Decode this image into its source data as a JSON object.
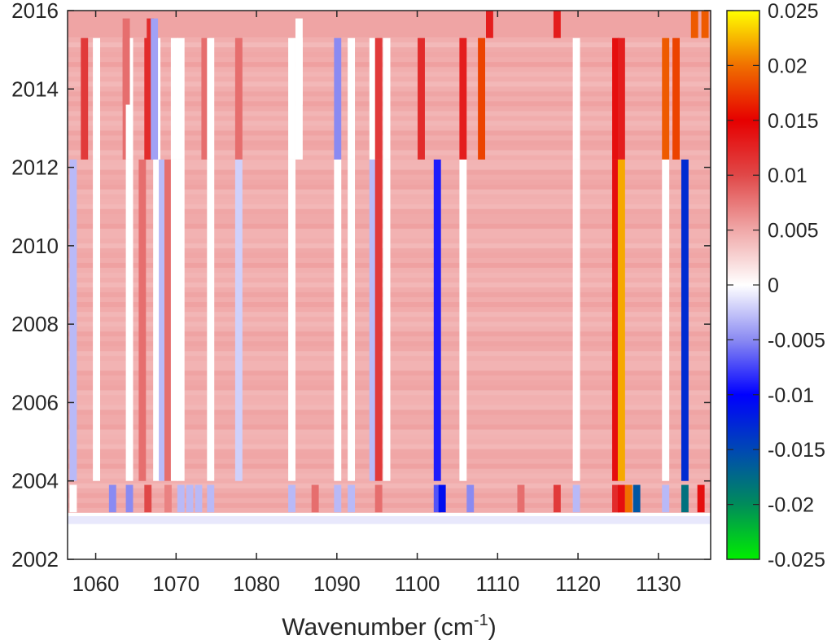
{
  "chart_data": {
    "type": "heatmap",
    "title": "",
    "xlabel": "Wavenumber (cm",
    "xlabel_sup": "-1",
    "xlabel_end": ")",
    "ylabel": "",
    "xlim": [
      1056.5,
      1136.5
    ],
    "ylim": [
      2002,
      2016
    ],
    "x_ticks": [
      1060,
      1070,
      1080,
      1090,
      1100,
      1110,
      1120,
      1130
    ],
    "x_tick_labels": [
      "1060",
      "1070",
      "1080",
      "1090",
      "1100",
      "1110",
      "1120",
      "1130"
    ],
    "y_ticks": [
      2002,
      2004,
      2006,
      2008,
      2010,
      2012,
      2014,
      2016
    ],
    "y_tick_labels": [
      "2002",
      "2004",
      "2006",
      "2008",
      "2010",
      "2012",
      "2014",
      "2016"
    ],
    "colorbar": {
      "range": [
        -0.025,
        0.025
      ],
      "ticks": [
        -0.025,
        -0.02,
        -0.015,
        -0.01,
        -0.005,
        0,
        0.005,
        0.01,
        0.015,
        0.02,
        0.025
      ],
      "tick_labels": [
        "-0.025",
        "-0.02",
        "-0.015",
        "-0.01",
        "-0.005",
        "0",
        "0.005",
        "0.01",
        "0.015",
        "0.02",
        "0.025"
      ],
      "colormap": [
        [
          -0.025,
          "#00ee00"
        ],
        [
          -0.02,
          "#008c5a"
        ],
        [
          -0.015,
          "#0048b4"
        ],
        [
          -0.01,
          "#0000ff"
        ],
        [
          -0.005,
          "#8a8af2"
        ],
        [
          0,
          "#ffffff"
        ],
        [
          0.005,
          "#f0a8a8"
        ],
        [
          0.01,
          "#e04848"
        ],
        [
          0.015,
          "#e60000"
        ],
        [
          0.02,
          "#f07000"
        ],
        [
          0.025,
          "#ffff00"
        ]
      ]
    },
    "background_value": 0.0055,
    "periods": [
      {
        "name": "2012-2015",
        "y": [
          2012.2,
          2015.3
        ]
      },
      {
        "name": "2004-2012",
        "y": [
          2004.0,
          2012.2
        ]
      },
      {
        "name": "2003-2004",
        "y": [
          2003.2,
          2003.9
        ]
      }
    ],
    "columns": [
      {
        "x": 1057.2,
        "values": [
          0.0055,
          -0.003,
          0.0
        ]
      },
      {
        "x": 1058.6,
        "values": [
          0.011,
          0.0055,
          0.0055
        ]
      },
      {
        "x": 1060.1,
        "values": [
          0.0,
          0.0,
          0.0055
        ]
      },
      {
        "x": 1062.1,
        "values": [
          0.0055,
          0.0055,
          -0.005
        ]
      },
      {
        "x": 1063.8,
        "values": [
          0.008,
          0.0055,
          0.0055
        ]
      },
      {
        "x": 1064.2,
        "values": [
          0.0,
          0.0,
          -0.005
        ]
      },
      {
        "x": 1065.8,
        "values": [
          0.0055,
          0.008,
          0.0055
        ]
      },
      {
        "x": 1066.5,
        "values": [
          0.012,
          0.0055,
          0.01
        ]
      },
      {
        "x": 1067.1,
        "values": [
          -0.003,
          0.0055,
          0.0055
        ]
      },
      {
        "x": 1067.6,
        "values": [
          0.0,
          0.0,
          0.0055
        ]
      },
      {
        "x": 1068.3,
        "values": [
          0.0055,
          -0.003,
          0.0055
        ]
      },
      {
        "x": 1069.0,
        "values": [
          0.0055,
          0.008,
          0.007
        ]
      },
      {
        "x": 1069.8,
        "values": [
          0.0,
          0.0,
          0.0055
        ]
      },
      {
        "x": 1070.6,
        "values": [
          0.0,
          0.0,
          -0.003
        ]
      },
      {
        "x": 1071.7,
        "values": [
          0.0055,
          0.0055,
          -0.003
        ]
      },
      {
        "x": 1072.8,
        "values": [
          0.0055,
          0.0055,
          -0.003
        ]
      },
      {
        "x": 1073.6,
        "values": [
          0.008,
          0.0055,
          0.0055
        ]
      },
      {
        "x": 1074.3,
        "values": [
          0.0,
          0.0,
          -0.003
        ]
      },
      {
        "x": 1077.8,
        "values": [
          0.008,
          -0.002,
          0.0055
        ]
      },
      {
        "x": 1084.4,
        "values": [
          0.0,
          0.0,
          -0.003
        ]
      },
      {
        "x": 1085.3,
        "values": [
          0.0,
          0.0055,
          0.0055
        ]
      },
      {
        "x": 1087.3,
        "values": [
          0.0055,
          0.0055,
          0.008
        ]
      },
      {
        "x": 1090.1,
        "values": [
          -0.005,
          0.0,
          -0.003
        ]
      },
      {
        "x": 1091.8,
        "values": [
          0.0,
          0.0,
          -0.003
        ]
      },
      {
        "x": 1094.5,
        "values": [
          0.0,
          -0.003,
          0.0055
        ]
      },
      {
        "x": 1095.2,
        "values": [
          0.011,
          0.011,
          0.008
        ]
      },
      {
        "x": 1096.2,
        "values": [
          0.0,
          0.0,
          0.0055
        ]
      },
      {
        "x": 1100.5,
        "values": [
          0.012,
          0.0055,
          0.0055
        ]
      },
      {
        "x": 1102.5,
        "values": [
          0.0055,
          -0.009,
          -0.007
        ]
      },
      {
        "x": 1103.1,
        "values": [
          0.0055,
          0.0055,
          -0.011
        ]
      },
      {
        "x": 1105.7,
        "values": [
          0.013,
          0.0,
          0.0055
        ]
      },
      {
        "x": 1106.6,
        "values": [
          0.0055,
          0.0055,
          -0.005
        ]
      },
      {
        "x": 1108.0,
        "values": [
          0.018,
          0.0055,
          0.0055
        ]
      },
      {
        "x": 1112.9,
        "values": [
          0.0055,
          0.0055,
          0.008
        ]
      },
      {
        "x": 1117.4,
        "values": [
          0.0055,
          0.0055,
          0.011
        ]
      },
      {
        "x": 1119.8,
        "values": [
          0.0,
          0.0,
          -0.003
        ]
      },
      {
        "x": 1124.7,
        "values": [
          0.014,
          0.014,
          0.012
        ]
      },
      {
        "x": 1125.4,
        "values": [
          0.013,
          0.022,
          0.014
        ]
      },
      {
        "x": 1126.3,
        "values": [
          0.0055,
          0.0055,
          0.02
        ]
      },
      {
        "x": 1127.3,
        "values": [
          0.0055,
          0.0055,
          -0.016
        ]
      },
      {
        "x": 1130.9,
        "values": [
          0.019,
          0.0,
          -0.003
        ]
      },
      {
        "x": 1132.2,
        "values": [
          0.018,
          0.0055,
          0.0055
        ]
      },
      {
        "x": 1133.3,
        "values": [
          0.0055,
          -0.013,
          -0.018
        ]
      },
      {
        "x": 1135.3,
        "values": [
          0.0055,
          0.0055,
          0.014
        ]
      }
    ],
    "top_segments": [
      {
        "x": 1109.0,
        "y": [
          2015.3,
          2016
        ],
        "value": 0.013
      },
      {
        "x": 1117.4,
        "y": [
          2015.3,
          2016
        ],
        "value": 0.013
      },
      {
        "x": 1134.5,
        "y": [
          2015.3,
          2016
        ],
        "value": 0.019
      },
      {
        "x": 1135.8,
        "y": [
          2015.3,
          2016
        ],
        "value": 0.019
      }
    ],
    "extra_segments": [
      {
        "x": 1066.8,
        "y": [
          2012.2,
          2015.8
        ],
        "value": 0.012
      },
      {
        "x": 1067.3,
        "y": [
          2012.2,
          2015.8
        ],
        "value": -0.004
      },
      {
        "x": 1063.8,
        "y": [
          2013.6,
          2015.8
        ],
        "value": 0.008
      },
      {
        "x": 1085.3,
        "y": [
          2013.6,
          2015.8
        ],
        "value": 0.0
      }
    ],
    "bottom_strip": {
      "y": [
        2002.9,
        2003.1
      ],
      "value": -0.001
    }
  }
}
